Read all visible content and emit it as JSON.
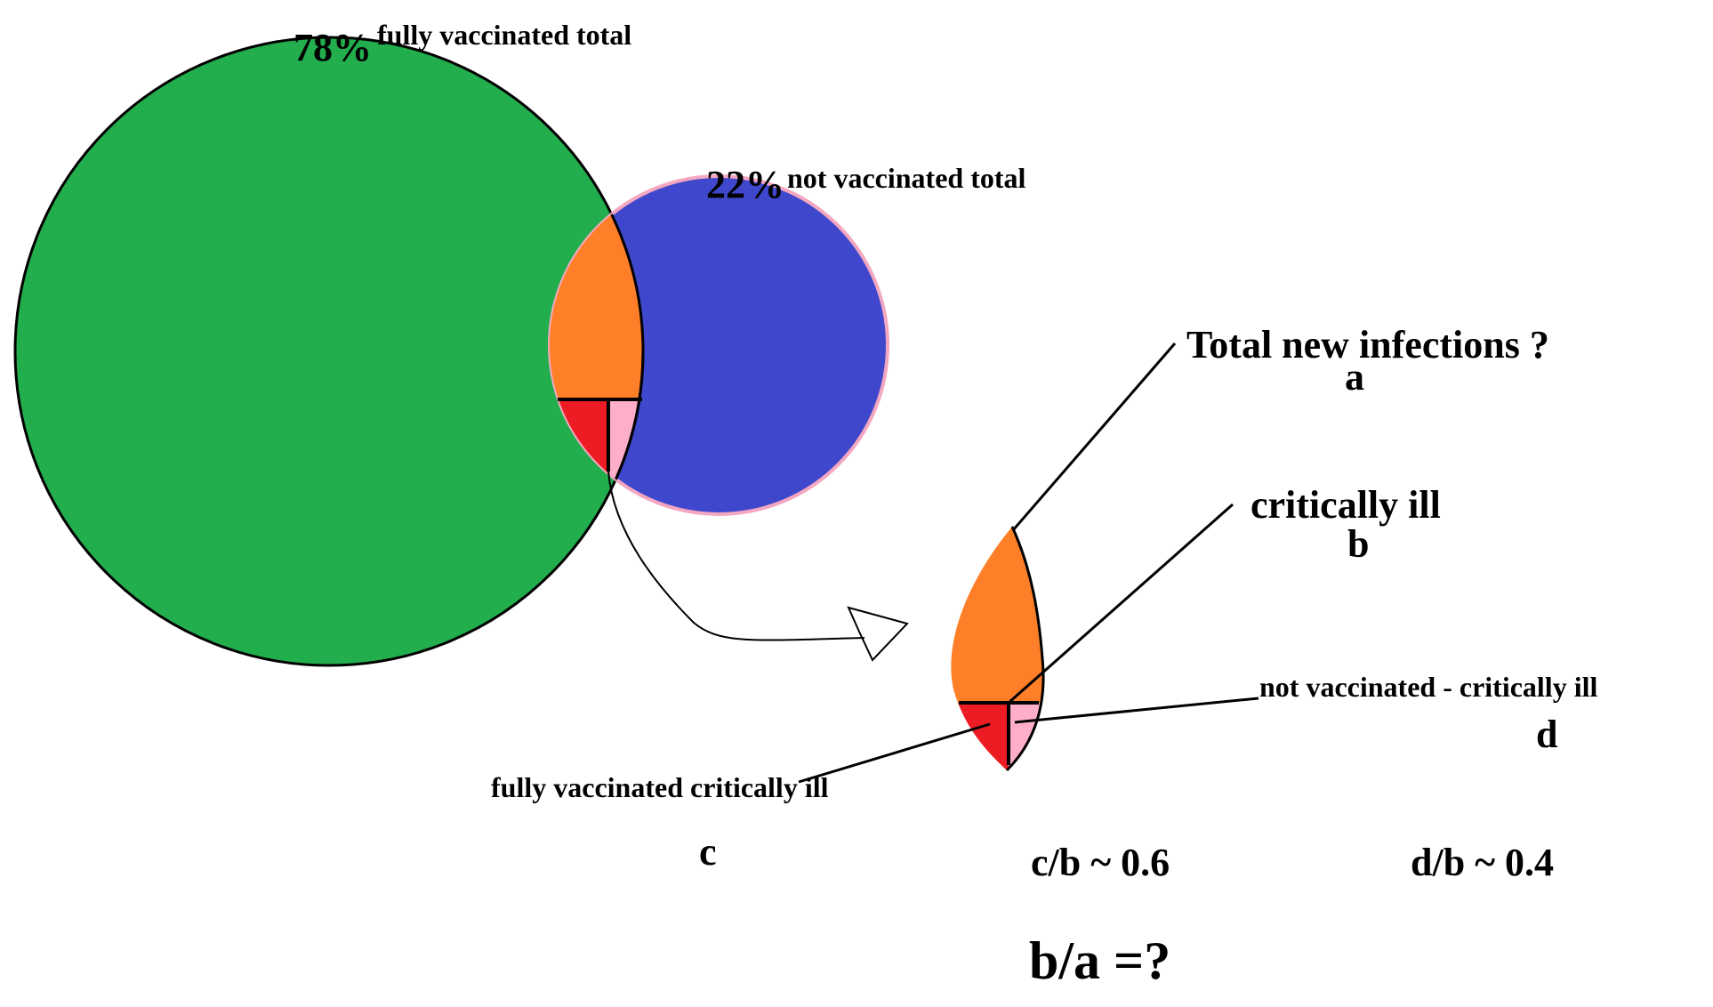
{
  "labels": {
    "vaccinated_percent": "78%",
    "vaccinated_total": "fully vaccinated total",
    "not_vaccinated_percent": "22%",
    "not_vaccinated_total": "not vaccinated total",
    "total_infections": "Total new infections ?",
    "a": "a",
    "critically_ill": "critically ill",
    "b": "b",
    "not_vaccinated_critically_ill": "not vaccinated - critically ill",
    "d": "d",
    "fully_vaccinated_critically_ill": "fully vaccinated critically ill",
    "c": "c",
    "c_over_b": "c/b ~ 0.6",
    "d_over_b": "d/b ~ 0.4",
    "question": "b/a =?"
  }
}
